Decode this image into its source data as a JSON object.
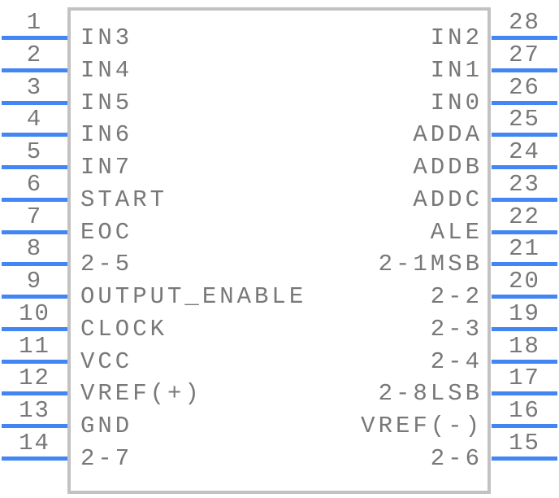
{
  "component": {
    "kind": "ic-pinout-symbol",
    "pin_count": 28
  },
  "colors": {
    "pin_line": "#4285f4",
    "text": "#787878",
    "body_border": "#c2c2c2",
    "background": "#ffffff"
  },
  "symbol": {
    "left_pins": [
      {
        "number": "1",
        "label": "IN3"
      },
      {
        "number": "2",
        "label": "IN4"
      },
      {
        "number": "3",
        "label": "IN5"
      },
      {
        "number": "4",
        "label": "IN6"
      },
      {
        "number": "5",
        "label": "IN7"
      },
      {
        "number": "6",
        "label": "START"
      },
      {
        "number": "7",
        "label": "EOC"
      },
      {
        "number": "8",
        "label": "2-5"
      },
      {
        "number": "9",
        "label": "OUTPUT_ENABLE"
      },
      {
        "number": "10",
        "label": "CLOCK"
      },
      {
        "number": "11",
        "label": "VCC"
      },
      {
        "number": "12",
        "label": "VREF(+)"
      },
      {
        "number": "13",
        "label": "GND"
      },
      {
        "number": "14",
        "label": "2-7"
      }
    ],
    "right_pins": [
      {
        "number": "28",
        "label": "IN2"
      },
      {
        "number": "27",
        "label": "IN1"
      },
      {
        "number": "26",
        "label": "IN0"
      },
      {
        "number": "25",
        "label": "ADDA"
      },
      {
        "number": "24",
        "label": "ADDB"
      },
      {
        "number": "23",
        "label": "ADDC"
      },
      {
        "number": "22",
        "label": "ALE"
      },
      {
        "number": "21",
        "label": "2-1MSB"
      },
      {
        "number": "20",
        "label": "2-2"
      },
      {
        "number": "19",
        "label": "2-3"
      },
      {
        "number": "18",
        "label": "2-4"
      },
      {
        "number": "17",
        "label": "2-8LSB"
      },
      {
        "number": "16",
        "label": "VREF(-)"
      },
      {
        "number": "15",
        "label": "2-6"
      }
    ]
  }
}
